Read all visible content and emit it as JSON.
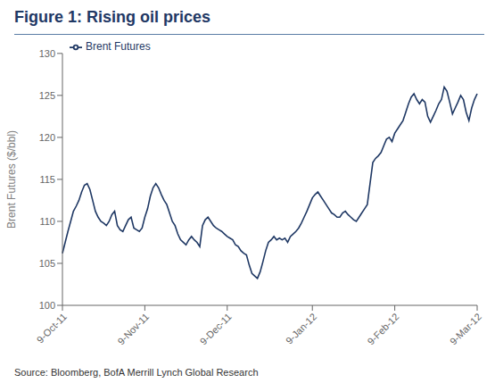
{
  "chart_data": {
    "type": "line",
    "title": "Figure 1: Rising oil prices",
    "source": "Source: Bloomberg, BofA Merrill Lynch Global Research",
    "ylabel": "Brent Futures ($/bbl)",
    "ylim": [
      100,
      130
    ],
    "yticks": [
      100,
      105,
      110,
      115,
      120,
      125,
      130
    ],
    "grid": false,
    "legend": "upper left",
    "categories": [
      "9-Oct-11",
      null,
      null,
      null,
      null,
      null,
      null,
      null,
      null,
      null,
      null,
      null,
      null,
      null,
      null,
      null,
      null,
      null,
      null,
      null,
      null,
      null,
      null,
      null,
      null,
      null,
      null,
      null,
      null,
      null,
      "9-Nov-11",
      null,
      null,
      null,
      null,
      null,
      null,
      null,
      null,
      null,
      null,
      null,
      null,
      null,
      null,
      null,
      null,
      null,
      null,
      null,
      null,
      null,
      null,
      null,
      null,
      null,
      null,
      null,
      null,
      null,
      "9-Dec-11",
      null,
      null,
      null,
      null,
      null,
      null,
      null,
      null,
      null,
      null,
      null,
      null,
      null,
      null,
      null,
      null,
      null,
      null,
      null,
      null,
      null,
      null,
      null,
      null,
      null,
      null,
      null,
      null,
      null,
      null,
      "9-Jan-12",
      null,
      null,
      null,
      null,
      null,
      null,
      null,
      null,
      null,
      null,
      null,
      null,
      null,
      null,
      null,
      null,
      null,
      null,
      null,
      null,
      null,
      null,
      null,
      null,
      null,
      null,
      null,
      null,
      null,
      "9-Feb-12",
      null,
      null,
      null,
      null,
      null,
      null,
      null,
      null,
      null,
      null,
      null,
      null,
      null,
      null,
      null,
      null,
      null,
      null,
      null,
      null,
      null,
      null,
      null,
      null,
      null,
      null,
      null,
      null,
      null,
      "9-Mar-12"
    ],
    "series": [
      {
        "name": "Brent Futures",
        "color": "#1F3864",
        "values": [
          106.2,
          107.5,
          108.8,
          110.0,
          111.2,
          111.8,
          112.5,
          113.5,
          114.3,
          114.5,
          113.8,
          112.5,
          111.2,
          110.5,
          110.0,
          109.8,
          109.5,
          110.0,
          110.8,
          111.2,
          109.5,
          109.0,
          108.8,
          109.5,
          110.2,
          110.5,
          109.2,
          109.0,
          108.8,
          109.2,
          110.5,
          111.5,
          113.0,
          114.0,
          114.5,
          114.0,
          113.2,
          112.5,
          112.0,
          111.0,
          110.0,
          109.5,
          108.5,
          107.8,
          107.5,
          107.2,
          107.8,
          108.2,
          107.8,
          107.5,
          107.0,
          109.5,
          110.2,
          110.5,
          110.0,
          109.5,
          109.2,
          109.0,
          108.8,
          108.5,
          108.2,
          108.0,
          107.8,
          107.2,
          107.0,
          106.5,
          106.2,
          106.0,
          104.8,
          103.8,
          103.5,
          103.2,
          104.0,
          105.2,
          106.5,
          107.5,
          107.8,
          108.2,
          107.8,
          108.0,
          107.8,
          108.0,
          107.5,
          108.2,
          108.5,
          108.8,
          109.2,
          109.8,
          110.5,
          111.2,
          112.0,
          112.8,
          113.2,
          113.5,
          113.0,
          112.5,
          112.0,
          111.5,
          111.0,
          110.8,
          110.5,
          110.5,
          111.0,
          111.2,
          110.8,
          110.5,
          110.2,
          110.0,
          110.5,
          111.0,
          111.5,
          112.0,
          114.5,
          117.0,
          117.5,
          117.8,
          118.2,
          119.0,
          119.8,
          120.0,
          119.5,
          120.5,
          121.0,
          121.5,
          122.0,
          123.0,
          124.0,
          124.8,
          125.2,
          124.5,
          124.0,
          124.5,
          124.2,
          122.5,
          121.8,
          122.5,
          123.2,
          124.0,
          124.5,
          126.0,
          125.5,
          124.2,
          122.8,
          123.5,
          124.2,
          125.0,
          124.5,
          123.0,
          122.0,
          123.5,
          124.5,
          125.2
        ]
      }
    ]
  }
}
